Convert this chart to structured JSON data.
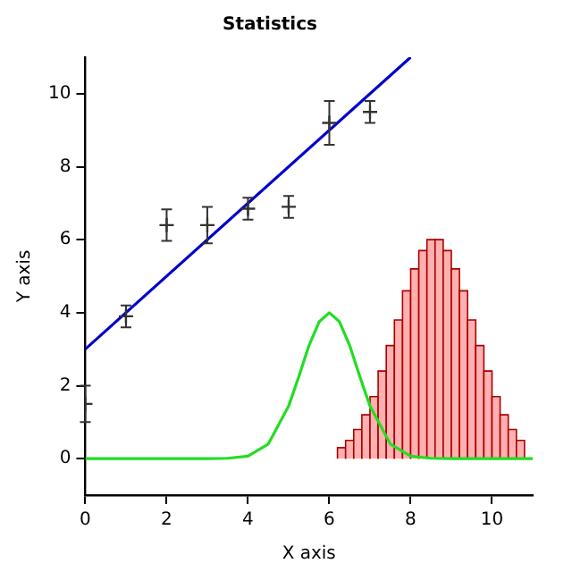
{
  "chart_data": {
    "type": "line",
    "title": "Statistics",
    "xlabel": "X axis",
    "ylabel": "Y axis",
    "xlim": [
      0,
      11
    ],
    "ylim": [
      -1,
      11
    ],
    "xticks": [
      0,
      2,
      4,
      6,
      8,
      10
    ],
    "yticks": [
      0,
      2,
      4,
      6,
      8,
      10
    ],
    "grid": false,
    "legend": false,
    "series": [
      {
        "type": "scatter",
        "marker": "cross",
        "color": "#333333",
        "x": [
          0,
          1,
          2,
          3,
          4,
          5,
          6,
          7
        ],
        "values": [
          1.5,
          3.9,
          6.4,
          6.4,
          6.85,
          6.9,
          9.2,
          9.5
        ],
        "errors": [
          0.5,
          0.3,
          0.43,
          0.5,
          0.3,
          0.3,
          0.6,
          0.3
        ]
      },
      {
        "type": "line",
        "color": "#0000cc",
        "x": [
          0,
          8
        ],
        "values": [
          3,
          11
        ]
      },
      {
        "type": "histogram",
        "color": "#ffb0b0",
        "bins": [
          6.2,
          6.4,
          6.6,
          6.8,
          7,
          7.2,
          7.4,
          7.6,
          7.8,
          8,
          8.2,
          8.4,
          8.6,
          8.8,
          9,
          9.2,
          9.4,
          9.6,
          9.8,
          10,
          10.2,
          10.4,
          10.6,
          10.8
        ],
        "values": [
          0.3,
          0.5,
          0.8,
          1.2,
          1.7,
          2.4,
          3.1,
          3.8,
          4.6,
          5.2,
          5.7,
          6,
          6,
          5.7,
          5.2,
          4.6,
          3.8,
          3.1,
          2.4,
          1.7,
          1.2,
          0.8,
          0.5
        ]
      },
      {
        "type": "line",
        "color": "#22dd22",
        "x": [
          0,
          3,
          3.5,
          4,
          4.5,
          5,
          5.25,
          5.5,
          5.75,
          6,
          6.25,
          6.5,
          6.75,
          7,
          7.5,
          8,
          8.5,
          9,
          11
        ],
        "values": [
          0,
          0,
          0.01,
          0.07,
          0.4,
          1.44,
          2.25,
          3.1,
          3.75,
          4,
          3.75,
          3.1,
          2.25,
          1.44,
          0.4,
          0.07,
          0.01,
          0,
          0
        ]
      }
    ]
  }
}
